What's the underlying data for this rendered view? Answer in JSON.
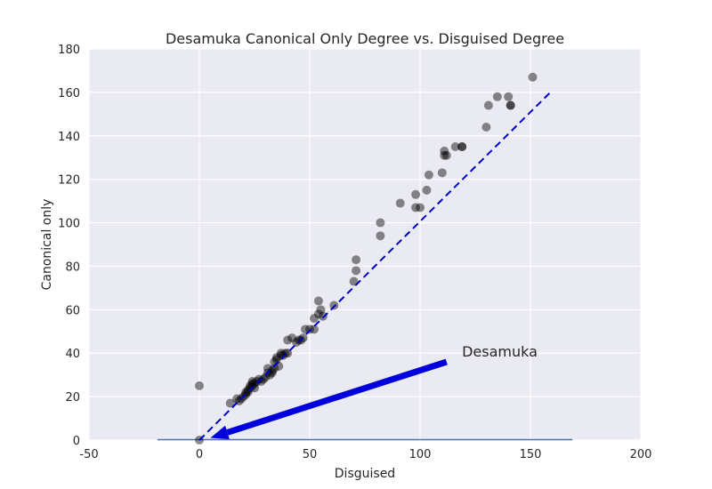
{
  "chart_data": {
    "type": "scatter",
    "title": "Desamuka Canonical Only Degree vs. Disguised Degree",
    "xlabel": "Disguised",
    "ylabel": "Canonical only",
    "xlim": [
      -50,
      200
    ],
    "ylim": [
      0,
      180
    ],
    "xticks": [
      -50,
      0,
      50,
      100,
      150,
      200
    ],
    "yticks": [
      0,
      20,
      40,
      60,
      80,
      100,
      120,
      140,
      160,
      180
    ],
    "grid": true,
    "background": "#eaeaf2",
    "point_color": "#000000",
    "point_opacity": 0.45,
    "points": [
      [
        0,
        25
      ],
      [
        0,
        0
      ],
      [
        14,
        17
      ],
      [
        17,
        19
      ],
      [
        18,
        18
      ],
      [
        19,
        19
      ],
      [
        20,
        20
      ],
      [
        21,
        21
      ],
      [
        21,
        22
      ],
      [
        22,
        22
      ],
      [
        22,
        23
      ],
      [
        23,
        24
      ],
      [
        23,
        25
      ],
      [
        24,
        25
      ],
      [
        24,
        26
      ],
      [
        24,
        27
      ],
      [
        25,
        24
      ],
      [
        25,
        26
      ],
      [
        26,
        27
      ],
      [
        27,
        28
      ],
      [
        28,
        27
      ],
      [
        29,
        28
      ],
      [
        30,
        29
      ],
      [
        31,
        31
      ],
      [
        31,
        33
      ],
      [
        32,
        30
      ],
      [
        33,
        31
      ],
      [
        33,
        32
      ],
      [
        34,
        33
      ],
      [
        34,
        36
      ],
      [
        35,
        38
      ],
      [
        35,
        37
      ],
      [
        36,
        34
      ],
      [
        37,
        39
      ],
      [
        37,
        40
      ],
      [
        38,
        39
      ],
      [
        39,
        40
      ],
      [
        40,
        40
      ],
      [
        40,
        46
      ],
      [
        42,
        47
      ],
      [
        44,
        45
      ],
      [
        45,
        46
      ],
      [
        46,
        46
      ],
      [
        47,
        47
      ],
      [
        48,
        51
      ],
      [
        50,
        51
      ],
      [
        52,
        51
      ],
      [
        52,
        56
      ],
      [
        54,
        58
      ],
      [
        54,
        64
      ],
      [
        55,
        60
      ],
      [
        56,
        57
      ],
      [
        61,
        62
      ],
      [
        70,
        73
      ],
      [
        71,
        78
      ],
      [
        71,
        83
      ],
      [
        82,
        94
      ],
      [
        82,
        100
      ],
      [
        91,
        109
      ],
      [
        98,
        107
      ],
      [
        98,
        113
      ],
      [
        100,
        107
      ],
      [
        103,
        115
      ],
      [
        104,
        122
      ],
      [
        110,
        123
      ],
      [
        111,
        131
      ],
      [
        111,
        133
      ],
      [
        112,
        131
      ],
      [
        116,
        135
      ],
      [
        119,
        135
      ],
      [
        119,
        135
      ],
      [
        130,
        144
      ],
      [
        131,
        154
      ],
      [
        135,
        158
      ],
      [
        140,
        158
      ],
      [
        141,
        154
      ],
      [
        141,
        154
      ],
      [
        151,
        167
      ]
    ],
    "reference_line": {
      "from": [
        0,
        0
      ],
      "to": [
        160,
        161
      ],
      "color": "#0000cc",
      "style": "dashed"
    },
    "baseline": {
      "from": [
        -19,
        0
      ],
      "to": [
        169,
        0
      ],
      "color": "#4c72b0"
    },
    "annotation": {
      "text": "Desamuka",
      "text_at": [
        119,
        41
      ],
      "arrow_from": [
        112,
        36
      ],
      "arrow_to": [
        5,
        1
      ],
      "color": "#0000dd"
    }
  }
}
